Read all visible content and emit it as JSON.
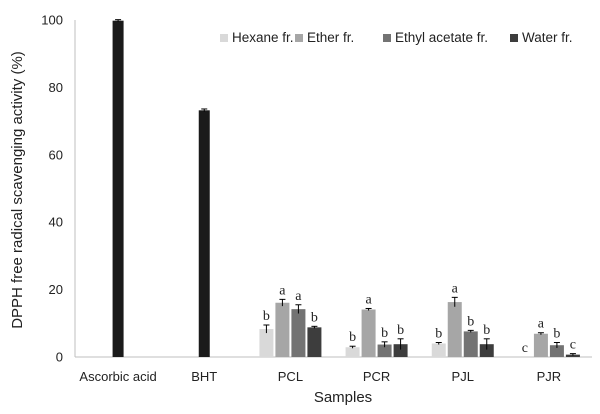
{
  "chart_data": {
    "type": "bar",
    "title": "",
    "xlabel": "Samples",
    "ylabel": "DPPH free radical scavenging activity (%)",
    "ylim": [
      0,
      100
    ],
    "yticks": [
      "0",
      "20",
      "40",
      "60",
      "80",
      "100"
    ],
    "grid": false,
    "legend_position": "top-right",
    "categories": [
      "Ascorbic acid",
      "BHT",
      "PCL",
      "PCR",
      "PJL",
      "PJR"
    ],
    "standards": [
      {
        "category": "Ascorbic acid",
        "value": 99.8,
        "error": 0.3,
        "color": "#1a1a1a"
      },
      {
        "category": "BHT",
        "value": 73.2,
        "error": 0.4,
        "color": "#1a1a1a"
      }
    ],
    "series": [
      {
        "name": "Hexane fr.",
        "color": "#d9d9d9",
        "values": [
          null,
          null,
          8.3,
          2.9,
          4.0,
          0
        ],
        "errors": [
          null,
          null,
          1.2,
          0.3,
          0.3,
          0
        ],
        "labels": [
          "",
          "",
          "b",
          "b",
          "b",
          "c"
        ]
      },
      {
        "name": "Ether fr.",
        "color": "#a6a6a6",
        "values": [
          null,
          null,
          16.1,
          14.1,
          16.3,
          6.9
        ],
        "errors": [
          null,
          null,
          1.0,
          0.3,
          1.4,
          0.3
        ],
        "labels": [
          "",
          "",
          "a",
          "a",
          "a",
          "a"
        ]
      },
      {
        "name": "Ethyl acetate fr.",
        "color": "#737373",
        "values": [
          null,
          null,
          14.2,
          3.7,
          7.6,
          3.5
        ],
        "errors": [
          null,
          null,
          1.3,
          0.8,
          0.3,
          0.8
        ],
        "labels": [
          "",
          "",
          "a",
          "b",
          "b",
          "b"
        ]
      },
      {
        "name": "Water fr.",
        "color": "#3d3d3d",
        "values": [
          null,
          null,
          8.8,
          3.8,
          3.8,
          0.7
        ],
        "errors": [
          null,
          null,
          0.3,
          1.6,
          1.6,
          0.3
        ],
        "labels": [
          "",
          "",
          "b",
          "b",
          "b",
          "c"
        ]
      }
    ]
  }
}
